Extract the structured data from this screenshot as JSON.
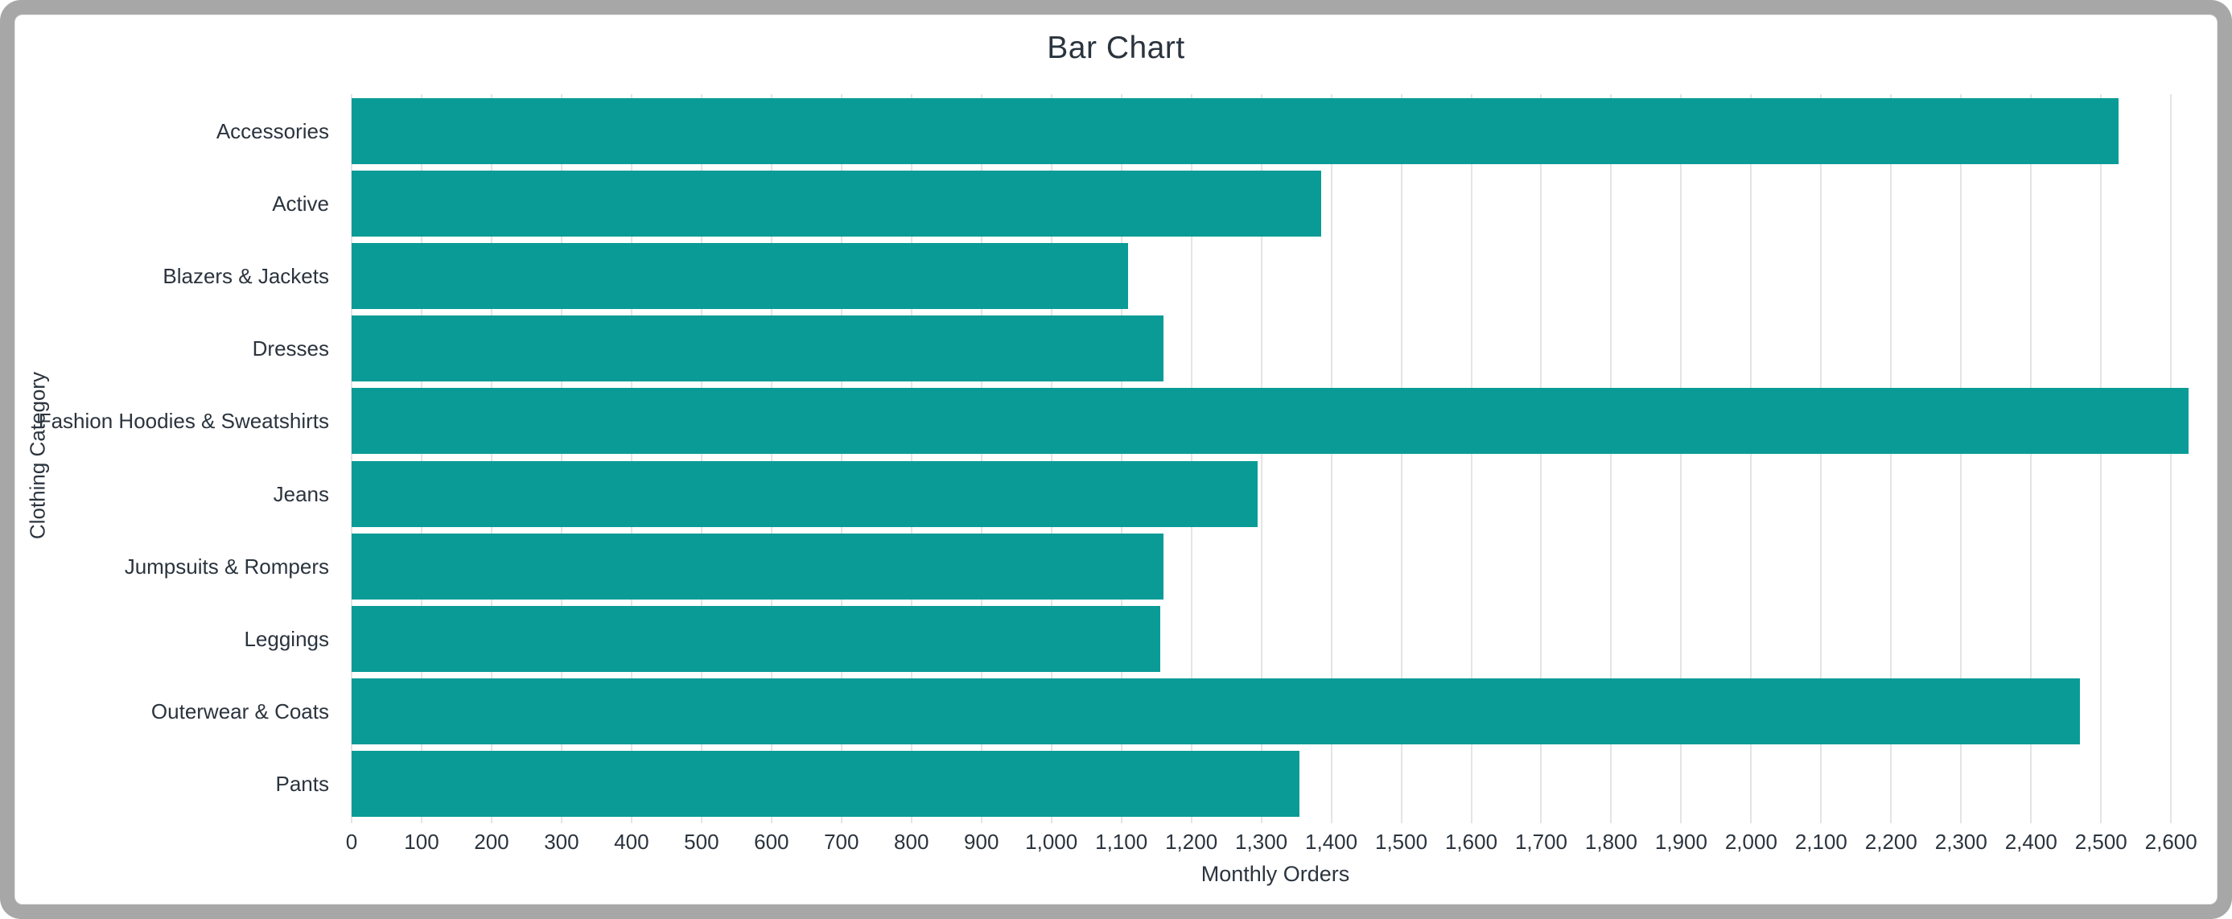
{
  "window": {
    "frame_color": "#a7a7a7",
    "canvas_color": "#ffffff"
  },
  "chart_data": {
    "type": "bar",
    "orientation": "horizontal",
    "title": "Bar Chart",
    "xlabel": "Monthly Orders",
    "ylabel": "Clothing Category",
    "categories": [
      "Accessories",
      "Active",
      "Blazers & Jackets",
      "Dresses",
      "Fashion Hoodies & Sweatshirts",
      "Jeans",
      "Jumpsuits & Rompers",
      "Leggings",
      "Outerwear & Coats",
      "Pants"
    ],
    "values": [
      2525,
      1385,
      1110,
      1160,
      2625,
      1295,
      1160,
      1155,
      2470,
      1355
    ],
    "xlim": [
      0,
      2640
    ],
    "x_tick_step": 100,
    "x_tick_max": 2600,
    "x_tick_format": "comma",
    "bar_color": "#0a9b97",
    "grid": true,
    "legend": "none",
    "text_color": "#2b343e",
    "gridline_color": "#e4e4e4"
  }
}
